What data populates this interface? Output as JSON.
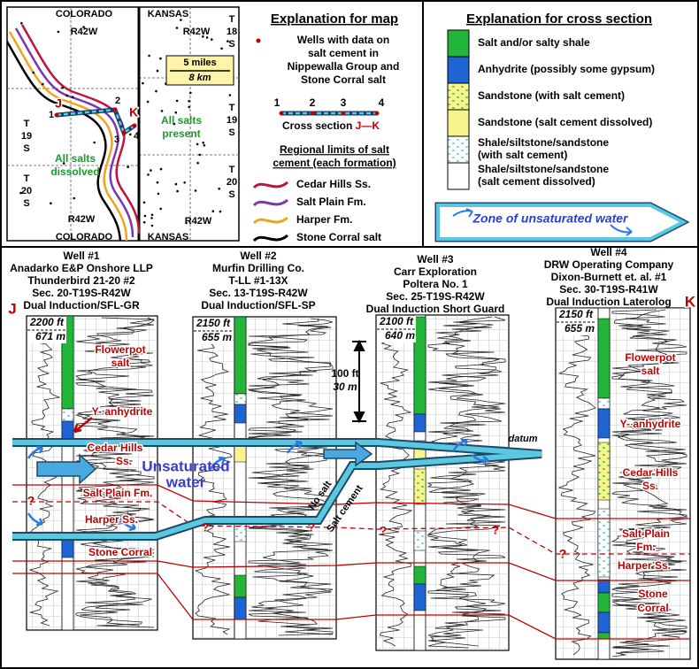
{
  "map": {
    "states_top": [
      "COLORADO",
      "KANSAS"
    ],
    "states_bottom": [
      "COLORADO",
      "KANSAS"
    ],
    "ranges": [
      "R42W",
      "R42W",
      "R42W",
      "R42W"
    ],
    "townships": [
      [
        "T",
        "18",
        "S"
      ],
      [
        "T",
        "19",
        "S"
      ],
      [
        "T",
        "19",
        "S"
      ],
      [
        "T",
        "20",
        "S"
      ],
      [
        "T",
        "20",
        "S"
      ]
    ],
    "scale": [
      "5 miles",
      "8 km"
    ],
    "section_ends": [
      "J",
      "K"
    ],
    "wells": [
      "1",
      "2",
      "3",
      "4"
    ],
    "present": [
      "All salts",
      "present"
    ],
    "dissolved": [
      "All salts",
      "dissolved"
    ]
  },
  "map_legend": {
    "title": "Explanation for map",
    "wells": [
      "Wells with data on",
      "salt cement in",
      "Nippewalla Group and",
      "Stone Corral salt"
    ],
    "numbers": [
      "1",
      "2",
      "3",
      "4"
    ],
    "cross_section": "Cross section ",
    "ends": [
      "J",
      "—",
      "K"
    ],
    "limits_title": [
      "Regional limits of salt",
      "cement (each formation)"
    ],
    "limits": [
      {
        "label": "Cedar Hills Ss.",
        "color": "#c0143c"
      },
      {
        "label": "Salt Plain Fm.",
        "color": "#7a38b0"
      },
      {
        "label": "Harper Fm.",
        "color": "#f4a21c"
      },
      {
        "label": "Stone Corral salt",
        "color": "#000000"
      }
    ]
  },
  "section_legend": {
    "title": "Explanation for cross section",
    "items": [
      {
        "lines": [
          "Salt and/or salty shale"
        ],
        "fill": "#22b53a"
      },
      {
        "lines": [
          "Anhydrite (possibly some gypsum)"
        ],
        "fill": "#1e64d2"
      },
      {
        "lines": [
          "Sandstone (with salt cement)"
        ],
        "fill": "#f8f48c",
        "dashes": "#2aa84a"
      },
      {
        "lines": [
          "Sandstone (salt cement dissolved)"
        ],
        "fill": "#f8f48c"
      },
      {
        "lines": [
          "Shale/siltstone/sandstone",
          "(with salt cement)"
        ],
        "fill": "#ffffff",
        "dashes": "#40c0c0"
      },
      {
        "lines": [
          "Shale/siltstone/sandstone",
          "(salt cement dissolved)"
        ],
        "fill": "#ffffff"
      }
    ],
    "zone": "Zone of unsaturated water"
  },
  "wells": [
    {
      "lines": [
        "Well #1",
        "Anadarko E&P Onshore LLP",
        "Thunderbird 21-20 #2",
        "Sec. 20-T19S-R42W",
        "Dual Induction/SFL-GR"
      ],
      "depth": [
        "2200 ft",
        "671 m"
      ]
    },
    {
      "lines": [
        "Well #2",
        "Murfin Drilling Co.",
        "T-LL #1-13X",
        "Sec. 13-T19S-R42W",
        "Dual Induction/SFL-SP"
      ],
      "depth": [
        "2150 ft",
        "655 m"
      ]
    },
    {
      "lines": [
        "Well #3",
        "Carr Exploration",
        "Poltera No. 1",
        "Sec. 25-T19S-R42W",
        "Dual Induction Short Guard"
      ],
      "depth": [
        "2100 ft",
        "640 m"
      ]
    },
    {
      "lines": [
        "Well #4",
        "DRW Operating Company",
        "Dixon-Burnett et. al. #1",
        "Sec. 30-T19S-R41W",
        "Dual Induction Laterolog"
      ],
      "depth": [
        "2150 ft",
        "655 m"
      ]
    }
  ],
  "annotations": {
    "flowerpot_1": [
      "Flowerpot",
      "salt"
    ],
    "y_anhydrite_1": "Y- anhydrite",
    "cedar_hills_1": [
      "Cedar Hills",
      "Ss."
    ],
    "salt_plain_1": "Salt Plain Fm.",
    "harper_1": "Harper Ss.",
    "stone_corral_1": "Stone Corral",
    "flowerpot_4": [
      "Flowerpot",
      "salt"
    ],
    "y_anhydrite_4": "Y- anhydrite",
    "cedar_hills_4": [
      "Cedar Hills",
      "Ss."
    ],
    "salt_plain_4": [
      "Salt Plain",
      "Fm."
    ],
    "harper_4": "Harper Ss.",
    "stone_corral_4": [
      "Stone",
      "Corral"
    ],
    "unsaturated": [
      "Unsaturated",
      "water"
    ],
    "no_salt": "No salt",
    "salt_cement": "Salt cement",
    "datum": "datum",
    "scale": [
      "100 ft",
      "30 m"
    ],
    "question": "?",
    "section_ends": [
      "J",
      "K"
    ]
  }
}
